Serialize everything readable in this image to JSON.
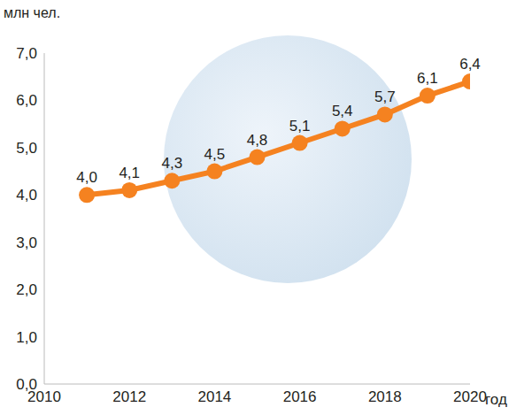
{
  "chart_data": {
    "type": "line",
    "title": "млн чел.",
    "x_label": "год",
    "x": [
      2011,
      2012,
      2013,
      2014,
      2015,
      2016,
      2017,
      2018,
      2019,
      2020
    ],
    "values": [
      4.0,
      4.1,
      4.3,
      4.5,
      4.8,
      5.1,
      5.4,
      5.7,
      6.1,
      6.4
    ],
    "value_labels": [
      "4,0",
      "4,1",
      "4,3",
      "4,5",
      "4,8",
      "5,1",
      "5,4",
      "5,7",
      "6,1",
      "6,4"
    ],
    "color": "#f58220",
    "marker": "circle",
    "line_style": "solid",
    "data_labels": true,
    "grid": false,
    "xlim": [
      2010,
      2020
    ],
    "xticks": [
      2010,
      2012,
      2014,
      2016,
      2018,
      2020
    ],
    "ylim": [
      0,
      7
    ],
    "yticks": [
      {
        "value": 0,
        "label": "0,0"
      },
      {
        "value": 1,
        "label": "1,0"
      },
      {
        "value": 2,
        "label": "2,0"
      },
      {
        "value": 3,
        "label": "3,0"
      },
      {
        "value": 4,
        "label": "4,0"
      },
      {
        "value": 5,
        "label": "5,0"
      },
      {
        "value": 6,
        "label": "6,0"
      },
      {
        "value": 7,
        "label": "7,0"
      }
    ]
  }
}
